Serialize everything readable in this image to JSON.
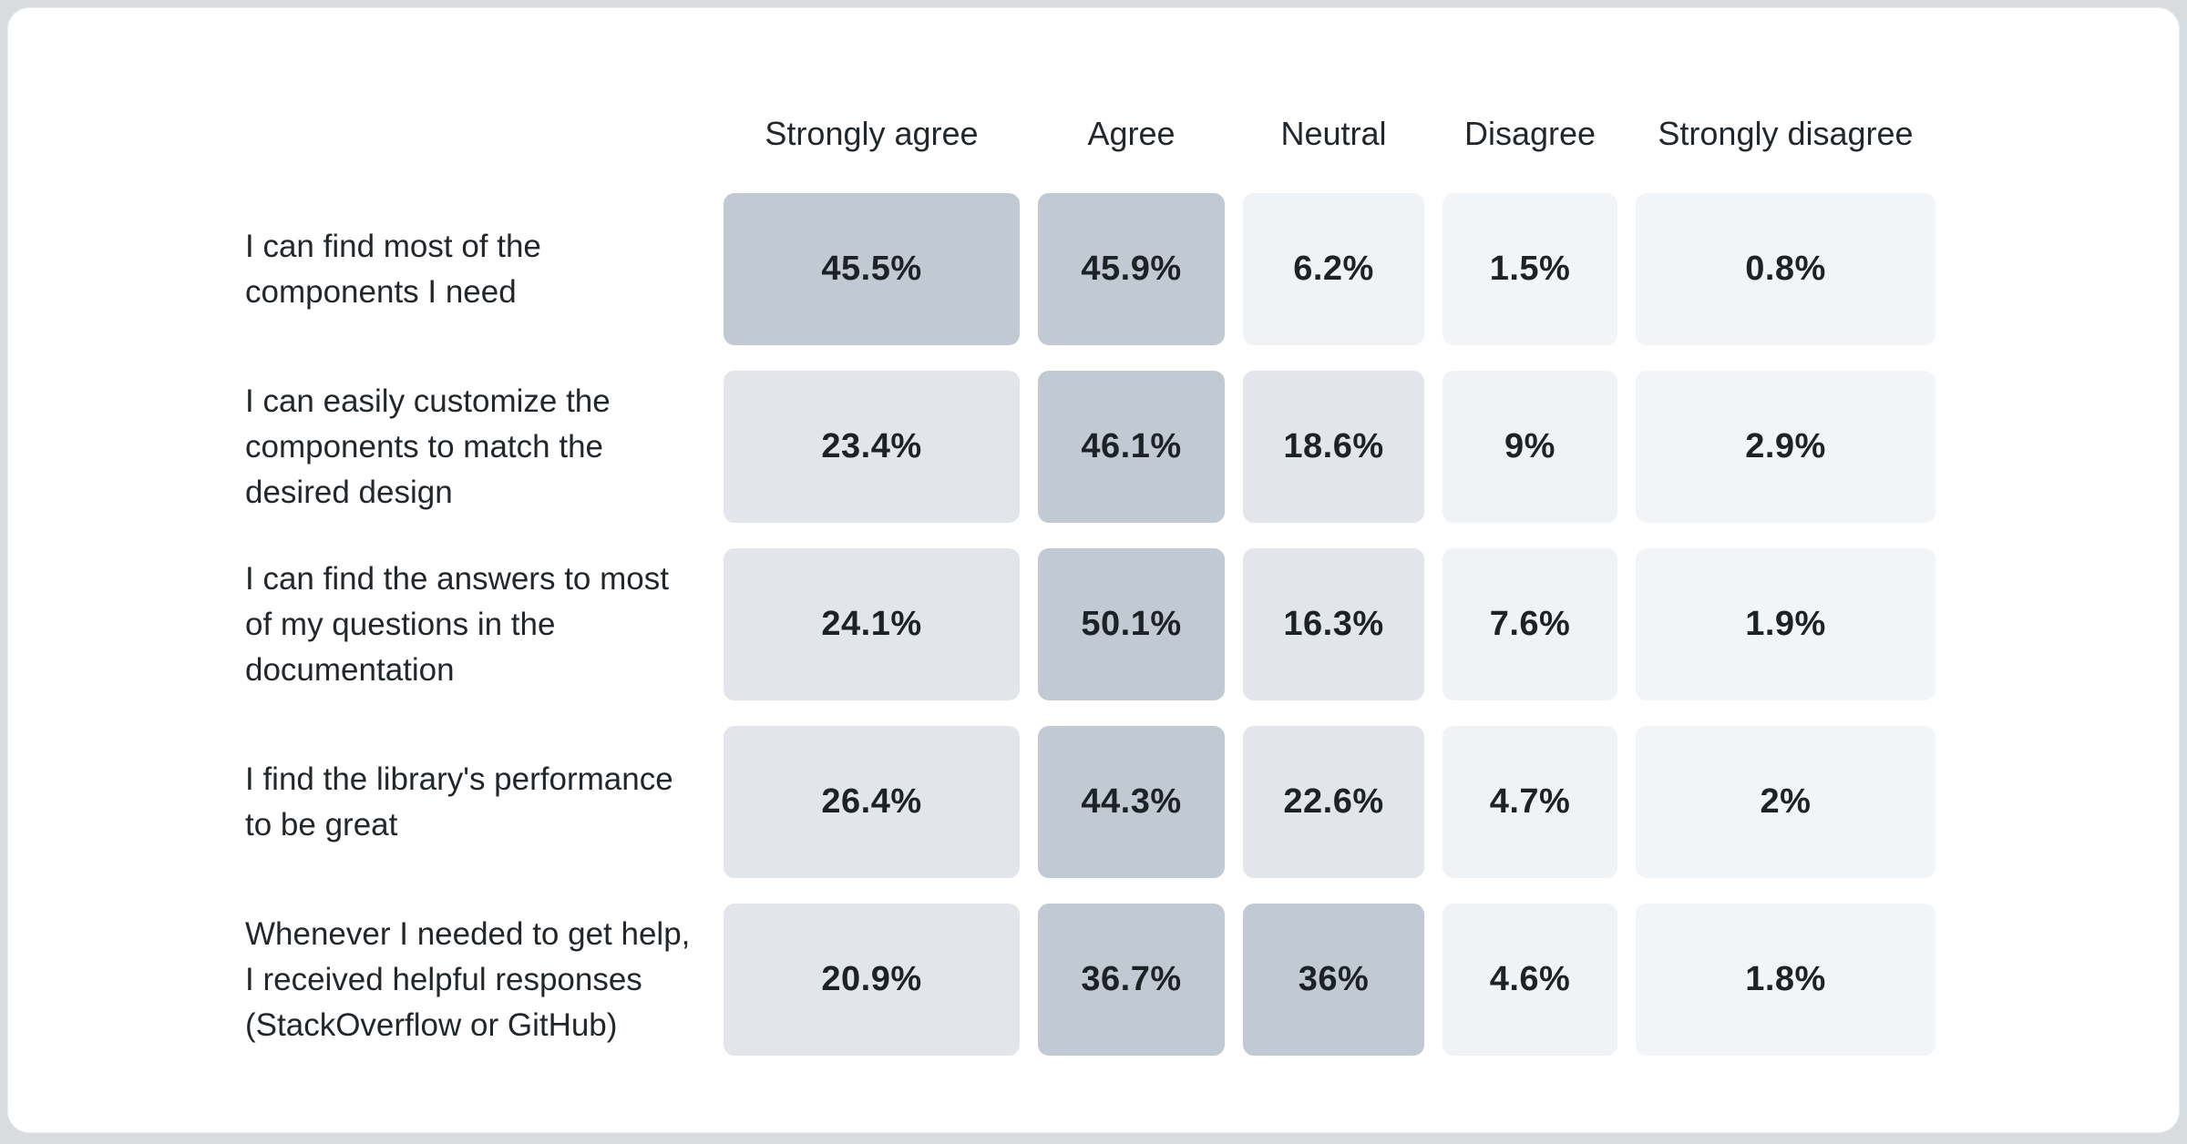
{
  "page": {
    "background": "#d8dcdf",
    "card_background": "#ffffff",
    "card_border": "#e9ecee",
    "heading_text_color": "#21272a",
    "value_text_color": "#1d2226"
  },
  "chart_data": {
    "type": "heatmap",
    "title": "",
    "unit": "%",
    "legend": "none",
    "columns": [
      "Strongly agree",
      "Agree",
      "Neutral",
      "Disagree",
      "Strongly disagree"
    ],
    "rows": [
      {
        "label": "I can find most of the components I need",
        "values": [
          45.5,
          45.9,
          6.2,
          1.5,
          0.8
        ]
      },
      {
        "label": "I can easily customize the components to match the desired design",
        "values": [
          23.4,
          46.1,
          18.6,
          9,
          2.9
        ]
      },
      {
        "label": "I can find the answers to most of my questions in the documentation",
        "values": [
          24.1,
          50.1,
          16.3,
          7.6,
          1.9
        ]
      },
      {
        "label": "I find the library's performance to be great",
        "values": [
          26.4,
          44.3,
          22.6,
          4.7,
          2
        ]
      },
      {
        "label": "Whenever I needed to get help, I received helpful responses (StackOverflow or GitHub)",
        "values": [
          20.9,
          36.7,
          36,
          4.6,
          1.8
        ]
      }
    ],
    "color_scale": {
      "lowest": "#f2f5f8",
      "low": "#eff3f6",
      "mid": "#e2e6ea",
      "high": "#c1c9d2"
    }
  },
  "table": {
    "headers": [
      "Strongly agree",
      "Agree",
      "Neutral",
      "Disagree",
      "Strongly disagree"
    ],
    "rows": [
      {
        "label_lines": "I can find most of the\ncomponents I need",
        "cells": [
          {
            "text": "45.5%",
            "color": "#c1c9d2"
          },
          {
            "text": "45.9%",
            "color": "#c1c9d2"
          },
          {
            "text": "6.2%",
            "color": "#eff3f6"
          },
          {
            "text": "1.5%",
            "color": "#f2f5f8"
          },
          {
            "text": "0.8%",
            "color": "#f2f5f8"
          }
        ]
      },
      {
        "label_lines": "I can easily customize the\ncomponents to match the\ndesired design",
        "cells": [
          {
            "text": "23.4%",
            "color": "#e2e6ea"
          },
          {
            "text": "46.1%",
            "color": "#c1c9d2"
          },
          {
            "text": "18.6%",
            "color": "#e2e6ea"
          },
          {
            "text": "9%",
            "color": "#eff3f6"
          },
          {
            "text": "2.9%",
            "color": "#f2f5f8"
          }
        ]
      },
      {
        "label_lines": "I can find the answers to most\nof my questions in the\ndocumentation",
        "cells": [
          {
            "text": "24.1%",
            "color": "#e2e6ea"
          },
          {
            "text": "50.1%",
            "color": "#c1c9d2"
          },
          {
            "text": "16.3%",
            "color": "#e2e6ea"
          },
          {
            "text": "7.6%",
            "color": "#eff3f6"
          },
          {
            "text": "1.9%",
            "color": "#f2f5f8"
          }
        ]
      },
      {
        "label_lines": "I find the library's performance\nto be great",
        "cells": [
          {
            "text": "26.4%",
            "color": "#e2e6ea"
          },
          {
            "text": "44.3%",
            "color": "#c1c9d2"
          },
          {
            "text": "22.6%",
            "color": "#e2e6ea"
          },
          {
            "text": "4.7%",
            "color": "#eff3f6"
          },
          {
            "text": "2%",
            "color": "#f2f5f8"
          }
        ]
      },
      {
        "label_lines": "Whenever I needed to get help,\nI received helpful responses\n(StackOverflow or GitHub)",
        "cells": [
          {
            "text": "20.9%",
            "color": "#e2e6ea"
          },
          {
            "text": "36.7%",
            "color": "#c1c9d2"
          },
          {
            "text": "36%",
            "color": "#c1c9d2"
          },
          {
            "text": "4.6%",
            "color": "#eff3f6"
          },
          {
            "text": "1.8%",
            "color": "#f2f5f8"
          }
        ]
      }
    ]
  }
}
